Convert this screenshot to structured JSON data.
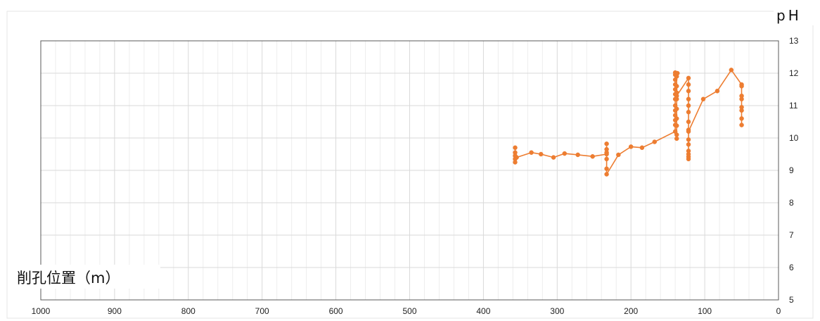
{
  "chart_data": {
    "type": "line",
    "title": "",
    "xlabel": "削孔位置（m）",
    "ylabel": "pH",
    "xlim": [
      1000,
      0
    ],
    "ylim": [
      5,
      13
    ],
    "x_reversed": true,
    "grid": true,
    "legend": "none",
    "x_ticks": [
      1000,
      900,
      800,
      700,
      600,
      500,
      400,
      300,
      200,
      100,
      0
    ],
    "y_ticks": [
      5,
      6,
      7,
      8,
      9,
      10,
      11,
      12,
      13
    ],
    "colors": {
      "series": "#ED7D31",
      "grid": "#D9D9D9",
      "frame": "#595959"
    },
    "series": [
      {
        "points": [
          [
            357,
            9.7
          ],
          [
            357,
            9.55
          ],
          [
            357,
            9.45
          ],
          [
            357,
            9.35
          ],
          [
            357,
            9.25
          ],
          [
            355,
            9.4
          ],
          [
            335,
            9.55
          ],
          [
            322,
            9.5
          ],
          [
            305,
            9.4
          ],
          [
            290,
            9.52
          ],
          [
            272,
            9.48
          ],
          [
            252,
            9.43
          ],
          [
            233,
            9.5
          ],
          [
            233,
            9.82
          ],
          [
            233,
            9.65
          ],
          [
            233,
            9.55
          ],
          [
            233,
            9.35
          ],
          [
            233,
            9.05
          ],
          [
            233,
            8.88
          ],
          [
            217,
            9.48
          ],
          [
            200,
            9.73
          ],
          [
            185,
            9.7
          ],
          [
            168,
            9.88
          ],
          [
            140,
            10.2
          ],
          [
            140,
            10.4
          ],
          [
            140,
            10.55
          ],
          [
            140,
            10.7
          ],
          [
            140,
            10.85
          ],
          [
            140,
            11.0
          ],
          [
            140,
            11.2
          ],
          [
            140,
            11.35
          ],
          [
            140,
            11.5
          ],
          [
            140,
            11.65
          ],
          [
            140,
            11.8
          ],
          [
            140,
            11.95
          ],
          [
            140,
            12.02
          ],
          [
            137,
            12.0
          ],
          [
            138,
            11.9
          ],
          [
            138,
            11.6
          ],
          [
            138,
            11.4
          ],
          [
            138,
            11.2
          ],
          [
            138,
            10.9
          ],
          [
            138,
            10.6
          ],
          [
            138,
            10.38
          ],
          [
            138,
            10.1
          ],
          [
            138,
            9.98
          ],
          [
            138,
            11.3
          ],
          [
            122,
            11.85
          ],
          [
            122,
            11.65
          ],
          [
            122,
            11.45
          ],
          [
            122,
            11.2
          ],
          [
            122,
            11.0
          ],
          [
            122,
            10.8
          ],
          [
            122,
            10.5
          ],
          [
            122,
            10.25
          ],
          [
            122,
            9.95
          ],
          [
            122,
            9.8
          ],
          [
            122,
            9.6
          ],
          [
            122,
            9.5
          ],
          [
            122,
            9.42
          ],
          [
            122,
            9.35
          ],
          [
            122,
            10.2
          ],
          [
            102,
            11.2
          ],
          [
            83,
            11.45
          ],
          [
            64,
            12.1
          ],
          [
            50,
            11.65
          ],
          [
            50,
            11.6
          ],
          [
            50,
            11.3
          ],
          [
            50,
            11.2
          ],
          [
            50,
            10.95
          ],
          [
            50,
            10.85
          ],
          [
            50,
            10.6
          ],
          [
            50,
            10.4
          ]
        ]
      }
    ]
  }
}
